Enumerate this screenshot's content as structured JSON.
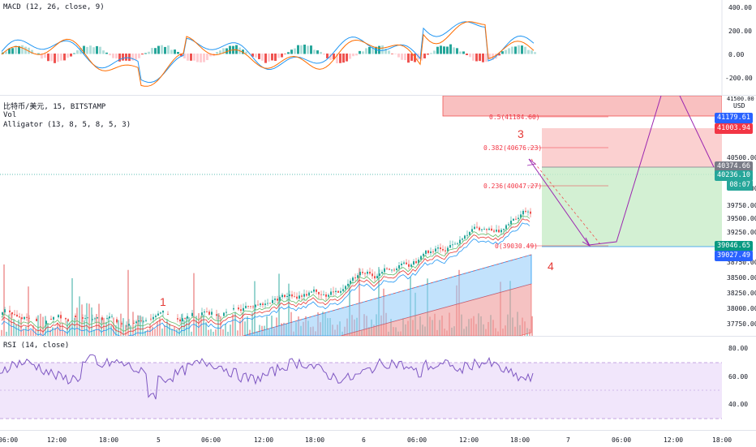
{
  "macd": {
    "label": "MACD (12, 26, close, 9)",
    "ticks": [
      "400.00",
      "200.00",
      "0.00",
      "-200.00"
    ]
  },
  "main": {
    "title": "比特币/美元, 15, BITSTAMP",
    "vol_label": "Vol",
    "alligator_label": "Alligator (13, 8, 5, 8, 5, 3)",
    "usd_label": "USD",
    "price_ticks": [
      "41500.00",
      "40500.00",
      "40000.00",
      "39750.00",
      "39500.00",
      "39250.00",
      "38750.00",
      "38500.00",
      "38250.00",
      "38000.00",
      "37750.00"
    ],
    "badges": {
      "b1": "41179.61",
      "b2": "41003.94",
      "b3": "40374.66",
      "b4": "40236.10",
      "b5": "08:07",
      "b6": "39046.65",
      "b7": "39027.49"
    },
    "fib": {
      "f05": "0.5(41184.60)",
      "f382": "0.382(40676.23)",
      "f236": "0.236(40047.27)",
      "f0": "0(39030.49)"
    },
    "wave_labels": {
      "w1": "1",
      "w3": "3",
      "w4": "4"
    },
    "colors": {
      "up": "#26a69a",
      "down": "#ef5350",
      "fib": "#f23645",
      "path": "#9c27b0"
    }
  },
  "rsi": {
    "label": "RSI (14, close)",
    "ticks": [
      "80.00",
      "60.00",
      "40.00"
    ]
  },
  "time_axis": [
    "06:00",
    "12:00",
    "18:00",
    "5",
    "06:00",
    "12:00",
    "18:00",
    "6",
    "06:00",
    "12:00",
    "18:00",
    "7",
    "06:00",
    "12:00",
    "18:00"
  ]
}
